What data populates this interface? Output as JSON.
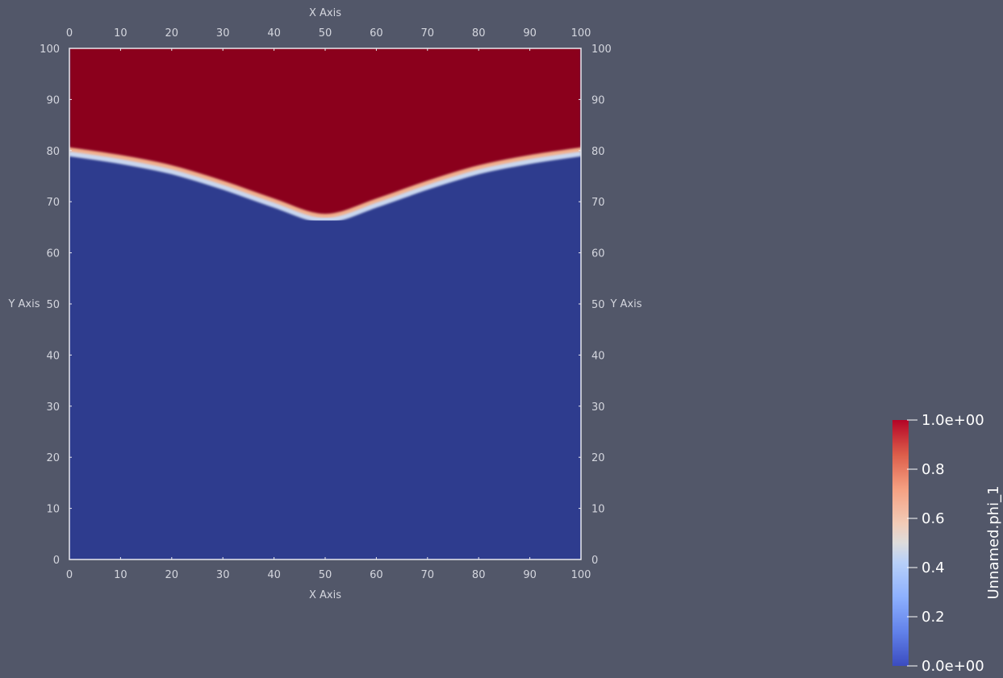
{
  "chart_data": {
    "type": "heatmap",
    "field_name": "Unnamed.phi_1",
    "x_axis": {
      "label": "X Axis",
      "range": [
        0,
        100
      ],
      "ticks": [
        "0",
        "10",
        "20",
        "30",
        "40",
        "50",
        "60",
        "70",
        "80",
        "90",
        "100"
      ]
    },
    "y_axis": {
      "label": "Y Axis",
      "range": [
        0,
        100
      ],
      "ticks": [
        "0",
        "10",
        "20",
        "30",
        "40",
        "50",
        "60",
        "70",
        "80",
        "90",
        "100"
      ]
    },
    "interface_curve": {
      "description_x": [
        0,
        10,
        20,
        30,
        40,
        50,
        60,
        70,
        80,
        90,
        100
      ],
      "y": [
        80,
        78.5,
        76.5,
        73.5,
        70,
        67,
        70,
        73.5,
        76.5,
        78.5,
        80
      ]
    },
    "region_values": {
      "above_interface": 1.0,
      "below_interface": 0.0
    },
    "colorbar": {
      "title": "Unnamed.phi_1",
      "range": [
        0,
        1
      ],
      "tick_values": [
        1.0,
        0.8,
        0.6,
        0.4,
        0.2,
        0.0
      ],
      "tick_labels": [
        "1.0e+00",
        "0.8",
        "0.6",
        "0.4",
        "0.2",
        "0.0e+00"
      ],
      "colormap": [
        "#3b4cc0",
        "#6788ee",
        "#9abbff",
        "#c9d7f0",
        "#edd1c2",
        "#f7a889",
        "#e26952",
        "#b40426"
      ]
    },
    "colors": {
      "low": "#2e3c8e",
      "high": "#8b021c",
      "background": "#525769",
      "frame": "#e8e8ee"
    }
  }
}
